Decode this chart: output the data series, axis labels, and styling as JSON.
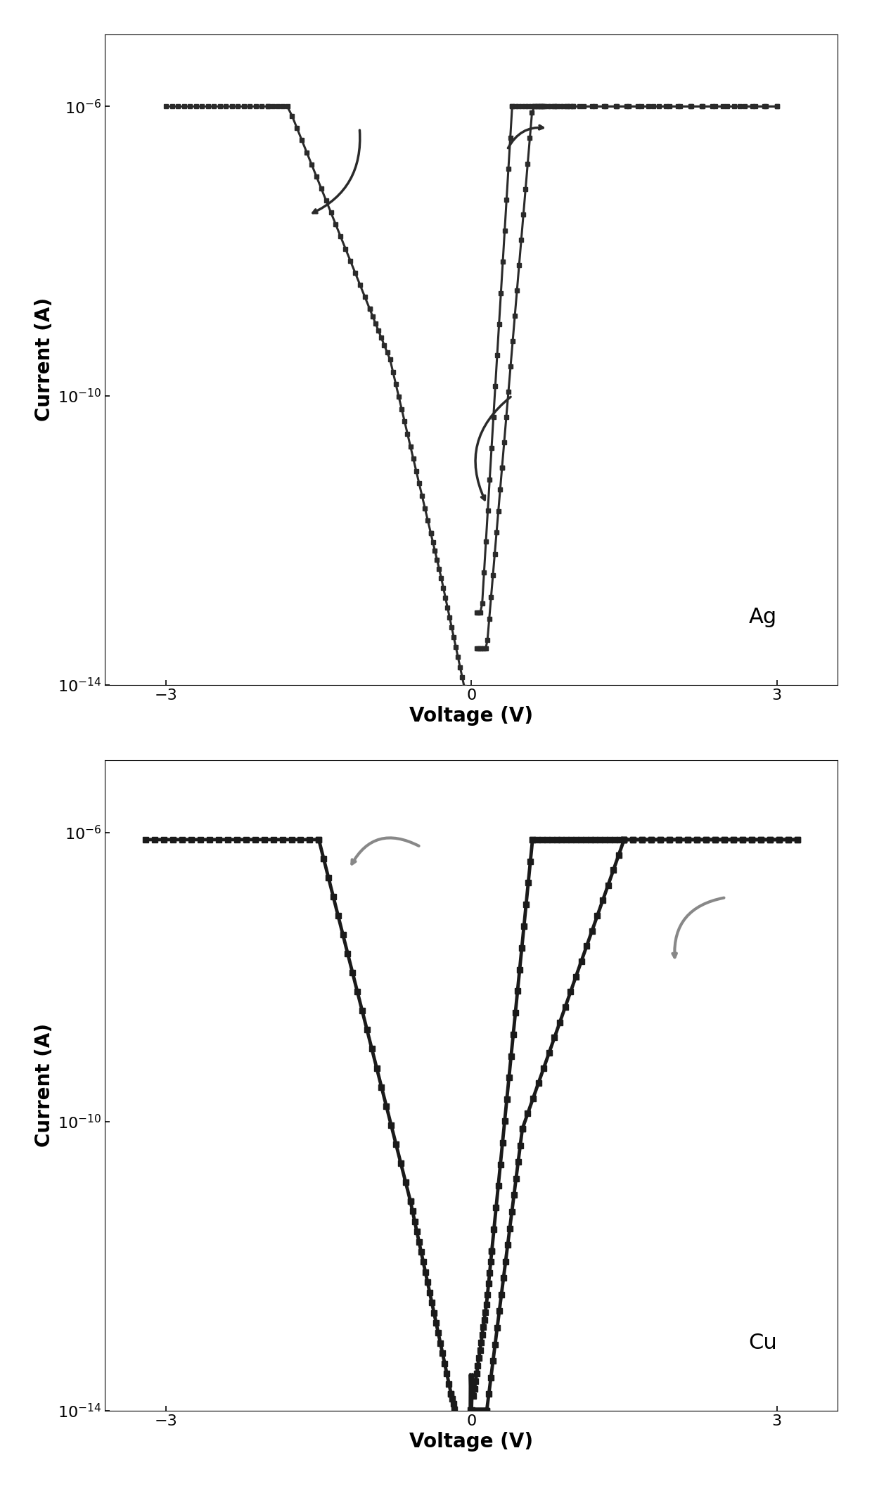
{
  "fig_width": 12.4,
  "fig_height": 21.13,
  "bg_color": "#ffffff",
  "plots": [
    {
      "label": "Ag",
      "xlim": [
        -3.6,
        3.6
      ],
      "ylim_low": -14,
      "ylim_high": -5,
      "xlabel": "Voltage (V)",
      "ylabel": "Current (A)",
      "xticks": [
        -3,
        0,
        3
      ],
      "yticks": [
        -14,
        -10,
        -6
      ],
      "line_color": "#2a2a2a",
      "arrow_color": "#2a2a2a",
      "linewidth": 2.2,
      "markersize": 4.5
    },
    {
      "label": "Cu",
      "xlim": [
        -3.6,
        3.6
      ],
      "ylim_low": -14,
      "ylim_high": -5,
      "xlabel": "Voltage (V)",
      "ylabel": "Current (A)",
      "xticks": [
        -3,
        0,
        3
      ],
      "yticks": [
        -14,
        -10,
        -6
      ],
      "line_color": "#1a1a1a",
      "arrow_color": "#888888",
      "linewidth": 3.5,
      "markersize": 6
    }
  ]
}
